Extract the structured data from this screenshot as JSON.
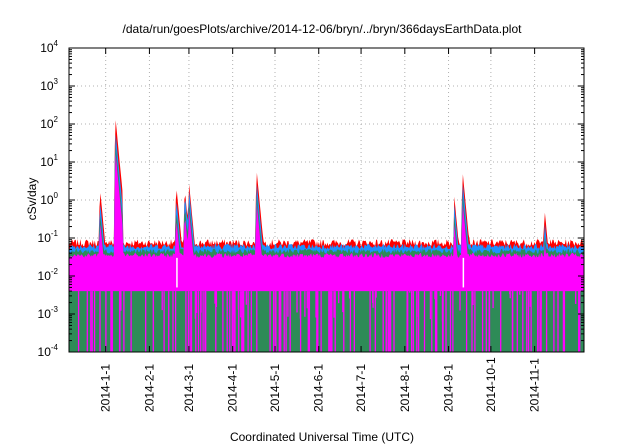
{
  "chart_data": {
    "type": "area",
    "title": "/data/run/goesPlots/archive/2014-12-06/bryn/../bryn/366daysEarthData.plot",
    "xlabel": "Coordinated Universal Time (UTC)",
    "ylabel": "cSv/day",
    "yscale": "log",
    "ylim": [
      0.0001,
      10000
    ],
    "xlim": [
      "2013-12-06",
      "2014-12-06"
    ],
    "grid": true,
    "y_ticks": [
      {
        "base": "10",
        "exp": "-4"
      },
      {
        "base": "10",
        "exp": "-3"
      },
      {
        "base": "10",
        "exp": "-2"
      },
      {
        "base": "10",
        "exp": "-1"
      },
      {
        "base": "10",
        "exp": "0"
      },
      {
        "base": "10",
        "exp": "1"
      },
      {
        "base": "10",
        "exp": "2"
      },
      {
        "base": "10",
        "exp": "3"
      },
      {
        "base": "10",
        "exp": "4"
      }
    ],
    "x_ticks": [
      "2014-1-1",
      "2014-2-1",
      "2014-3-1",
      "2014-4-1",
      "2014-5-1",
      "2014-6-1",
      "2014-7-1",
      "2014-8-1",
      "2014-9-1",
      "2014-10-1",
      "2014-11-1"
    ],
    "series_colors": [
      "#ff0000",
      "#1e90ff",
      "#2e8b57",
      "#ff00ff"
    ],
    "baseline": {
      "red": 0.075,
      "blue": 0.06,
      "green": 0.045,
      "magenta_top": 0.035,
      "magenta_floor": 0.004
    },
    "events": [
      {
        "date": "2013-12-28",
        "red": 2.0,
        "blue": 1.0
      },
      {
        "date": "2014-01-08",
        "red": 140,
        "blue": 60
      },
      {
        "date": "2014-02-20",
        "red": 2.5,
        "blue": 1.2
      },
      {
        "date": "2014-02-26",
        "red": 2.0,
        "blue": 1.5
      },
      {
        "date": "2014-03-01",
        "red": 3.0,
        "blue": 2.0
      },
      {
        "date": "2014-04-18",
        "red": 6.0,
        "blue": 3.0
      },
      {
        "date": "2014-09-05",
        "red": 1.3,
        "blue": 0.8
      },
      {
        "date": "2014-09-11",
        "red": 5.5,
        "blue": 3.0
      },
      {
        "date": "2014-11-08",
        "red": 0.6,
        "blue": 0.3
      }
    ]
  }
}
